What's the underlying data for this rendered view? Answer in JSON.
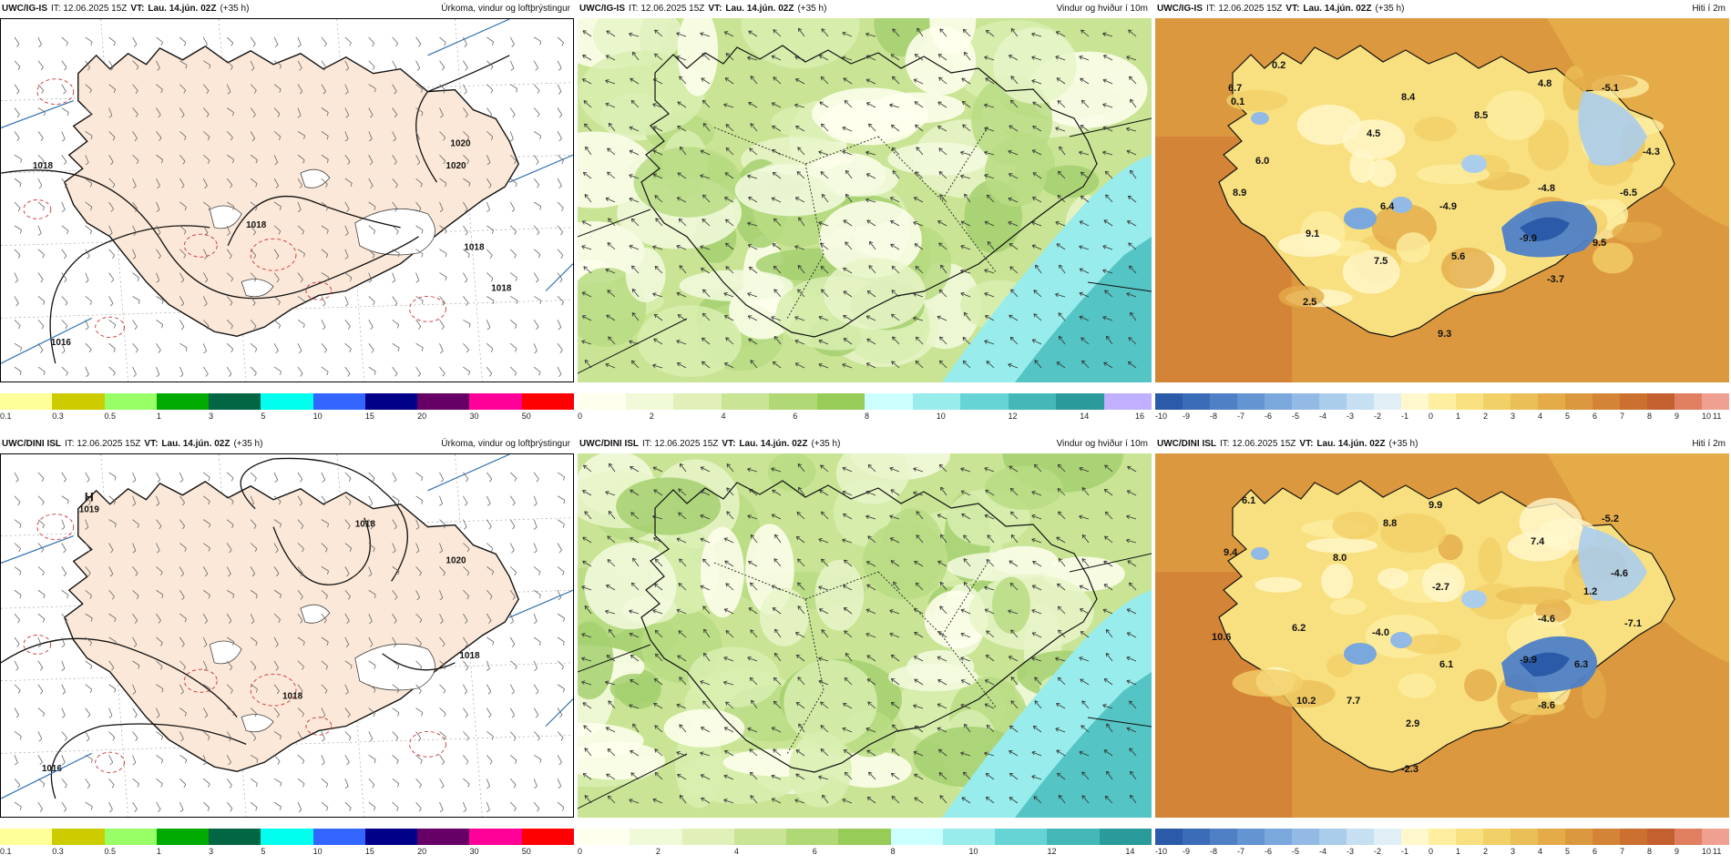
{
  "panels": [
    {
      "id": "p1",
      "model": "UWC/IG-IS",
      "it": "IT: 12.06.2025 15Z",
      "vt_label": "VT:",
      "vt": "Lau. 14.jún. 02Z",
      "lead": "(+35 h)",
      "title": "Úrkoma, vindur og loftþrýstingur",
      "type": "precip",
      "colors": [
        "#ffff99",
        "#cccc00",
        "#99ff66",
        "#00aa00",
        "#006644",
        "#00ffee",
        "#3366ff",
        "#000088",
        "#660066",
        "#ff0099",
        "#ff0000"
      ],
      "ticks": [
        "0.1",
        "0.3",
        "0.5",
        "1",
        "3",
        "5",
        "10",
        "15",
        "20",
        "30",
        "50"
      ],
      "isobars": [
        "1018",
        "1018",
        "1020",
        "1020",
        "1018",
        "1018",
        "1016"
      ]
    },
    {
      "id": "p2",
      "model": "UWC/IG-IS",
      "it": "IT: 12.06.2025 15Z",
      "vt_label": "VT:",
      "vt": "Lau. 14.jún. 02Z",
      "lead": "(+35 h)",
      "title": "Vindur og hviður í 10m",
      "type": "wind",
      "colors": [
        "#ffffee",
        "#f0f9d8",
        "#e0f0b8",
        "#c8e494",
        "#b0d874",
        "#98cc58",
        "#ccffff",
        "#99ecec",
        "#66d4d4",
        "#44b8b8",
        "#2a9a9a",
        "#c0b0ff"
      ],
      "ticks": [
        "0",
        "2",
        "4",
        "6",
        "8",
        "10",
        "12",
        "14",
        "16"
      ]
    },
    {
      "id": "p3",
      "model": "UWC/IG-IS",
      "it": "IT: 12.06.2025 15Z",
      "vt_label": "VT:",
      "vt": "Lau. 14.jún. 02Z",
      "lead": "(+35 h)",
      "title": "Hiti í 2m",
      "type": "temp",
      "colors": [
        "#2a5aa8",
        "#3b6cb8",
        "#4f80c6",
        "#6494d2",
        "#7aa7dc",
        "#92bae4",
        "#abcdec",
        "#c6dff2",
        "#e0eef6",
        "#fff8cc",
        "#fdeea0",
        "#f8e080",
        "#f2d068",
        "#ebbf58",
        "#e4ab48",
        "#dc983e",
        "#d48436",
        "#cc7030",
        "#c46030",
        "#e08060",
        "#f0a090"
      ],
      "ticks": [
        "-10",
        "-9",
        "-8",
        "-7",
        "-6",
        "-5",
        "-4",
        "-3",
        "-2",
        "-1",
        "0",
        "1",
        "2",
        "3",
        "4",
        "5",
        "6",
        "7",
        "8",
        "9",
        "10",
        "11"
      ],
      "values": [
        "0.2",
        "6.7",
        "0.1",
        "8.4",
        "4.8",
        "-5.1",
        "8.5",
        "4.5",
        "-4.3",
        "6.0",
        "8.9",
        "-4.8",
        "-6.5",
        "6.4",
        "-4.9",
        "-9.9",
        "9.5",
        "9.1",
        "7.5",
        "5.6",
        "-3.7",
        "2.5",
        "9.3"
      ]
    },
    {
      "id": "p4",
      "model": "UWC/DINI ISL",
      "it": "IT: 12.06.2025 15Z",
      "vt_label": "VT:",
      "vt": "Lau. 14.jún. 02Z",
      "lead": "(+35 h)",
      "title": "Úrkoma, vindur og loftþrýstingur",
      "type": "precip",
      "colors": [
        "#ffff99",
        "#cccc00",
        "#99ff66",
        "#00aa00",
        "#006644",
        "#00ffee",
        "#3366ff",
        "#000088",
        "#660066",
        "#ff0099",
        "#ff0000"
      ],
      "ticks": [
        "0.1",
        "0.3",
        "0.5",
        "1",
        "3",
        "5",
        "10",
        "15",
        "20",
        "30",
        "50"
      ],
      "high_letter": "H",
      "high_value": "1019",
      "isobars": [
        "1018",
        "1020",
        "1018",
        "1016",
        "1018"
      ]
    },
    {
      "id": "p5",
      "model": "UWC/DINI ISL",
      "it": "IT: 12.06.2025 15Z",
      "vt_label": "VT:",
      "vt": "Lau. 14.jún. 02Z",
      "lead": "(+35 h)",
      "title": "Vindur og hviður í 10m",
      "type": "wind",
      "colors": [
        "#ffffee",
        "#f0f9d8",
        "#e0f0b8",
        "#c8e494",
        "#b0d874",
        "#98cc58",
        "#ccffff",
        "#99ecec",
        "#66d4d4",
        "#44b8b8",
        "#2a9a9a"
      ],
      "ticks": [
        "0",
        "2",
        "4",
        "6",
        "8",
        "10",
        "12",
        "14"
      ]
    },
    {
      "id": "p6",
      "model": "UWC/DINI ISL",
      "it": "IT: 12.06.2025 15Z",
      "vt_label": "VT:",
      "vt": "Lau. 14.jún. 02Z",
      "lead": "(+35 h)",
      "title": "Hiti í 2m",
      "type": "temp",
      "colors": [
        "#2a5aa8",
        "#3b6cb8",
        "#4f80c6",
        "#6494d2",
        "#7aa7dc",
        "#92bae4",
        "#abcdec",
        "#c6dff2",
        "#e0eef6",
        "#fff8cc",
        "#fdeea0",
        "#f8e080",
        "#f2d068",
        "#ebbf58",
        "#e4ab48",
        "#dc983e",
        "#d48436",
        "#cc7030",
        "#c46030",
        "#e08060",
        "#f0a090"
      ],
      "ticks": [
        "-10",
        "-9",
        "-8",
        "-7",
        "-6",
        "-5",
        "-4",
        "-3",
        "-2",
        "-1",
        "0",
        "1",
        "2",
        "3",
        "4",
        "5",
        "6",
        "7",
        "8",
        "9",
        "10",
        "11"
      ],
      "values": [
        "6.1",
        "9.9",
        "8.8",
        "-5.2",
        "9.4",
        "7.4",
        "8.0",
        "-4.6",
        "-2.7",
        "1.2",
        "6.2",
        "-4.6",
        "-7.1",
        "10.6",
        "-4.0",
        "-9.9",
        "6.3",
        "6.1",
        "10.2",
        "7.7",
        "-8.6",
        "2.9",
        "-2.3"
      ]
    }
  ]
}
